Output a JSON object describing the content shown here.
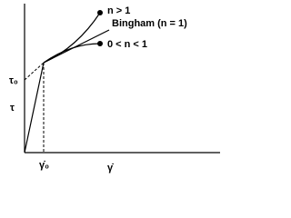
{
  "labels": {
    "shear_thickening": "n > 1",
    "bingham": "Bingham (n = 1)",
    "shear_thinning": "0 < n < 1"
  },
  "axes": {
    "y_label": "τ",
    "yield_stress": "τ₀",
    "x_label": "γ̇",
    "critical_rate": "γ̇₀"
  }
}
